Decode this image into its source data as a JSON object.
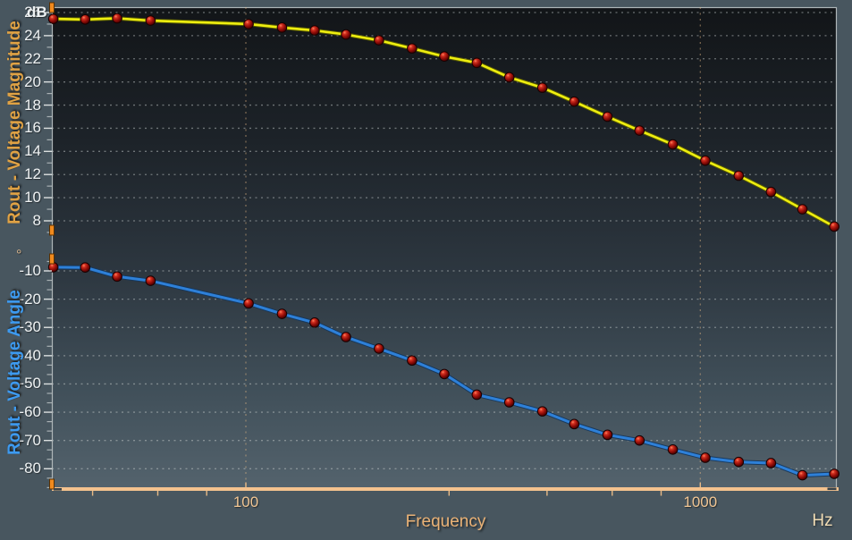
{
  "labels": {
    "mag_unit": "dB",
    "ang_unit": "°",
    "mag_axis_title": "Rout - Voltage Magnitude",
    "ang_axis_title": "Rout - Voltage Angle",
    "x_axis_title": "Frequency",
    "x_unit": "Hz"
  },
  "colors": {
    "page_background": "#48565f",
    "plot_gradient_top": "#14171a",
    "plot_gradient_bottom": "#54636d",
    "plot_border": "#aeb6b8",
    "x_axis_line": "#f4c28e",
    "tan_text": "#f0c593",
    "white_text": "#eff2f3",
    "magnitude_curve": "#eeee10",
    "angle_curve": "#2e80d8",
    "marker_fill": "#8b0000",
    "grid_gray": "#c3c9ca",
    "grid_tan": "#e8ba86",
    "axis_handle": "#f08a1e",
    "mag_title_color": "#e0a244",
    "ang_title_color": "#3d9af0"
  },
  "chart_data": {
    "type": "line",
    "title": "",
    "xlabel": "Frequency",
    "x_unit": "Hz",
    "x_scale": "log",
    "grid": true,
    "x_range": [
      37.5,
      1980
    ],
    "x_ticks_labeled": [
      100,
      1000
    ],
    "x_ticks_minor": [
      46,
      64,
      82,
      280,
      460,
      640,
      820
    ],
    "x": [
      37.7,
      44.3,
      52.1,
      61.7,
      101.4,
      120.1,
      141.7,
      166.1,
      196.3,
      232.1,
      273.4,
      322.3,
      380.0,
      449.3,
      528.0,
      624.9,
      734.9,
      870.1,
      1025.8,
      1215.0,
      1430.9,
      1678.0,
      1972.0
    ],
    "series": [
      {
        "name": "Rout - Voltage Magnitude",
        "unit": "dB",
        "axis_ticks": [
          26,
          24,
          22,
          20,
          18,
          16,
          14,
          12,
          10,
          8
        ],
        "axis_range": [
          6.8,
          26.5
        ],
        "color": "#eeee10",
        "marker": "dark-red-circle",
        "values": [
          25.45,
          25.4,
          25.5,
          25.3,
          25.0,
          24.7,
          24.45,
          24.1,
          23.6,
          22.9,
          22.2,
          21.65,
          20.4,
          19.5,
          18.3,
          17.0,
          15.8,
          14.6,
          13.2,
          11.9,
          10.5,
          9.0,
          7.5
        ]
      },
      {
        "name": "Rout - Voltage Angle",
        "unit": "deg",
        "axis_ticks": [
          -10,
          -20,
          -30,
          -40,
          -50,
          -60,
          -70,
          -80
        ],
        "axis_range": [
          -4.0,
          -87.2
        ],
        "color": "#2e80d8",
        "marker": "dark-red-circle",
        "values": [
          -8.7,
          -8.8,
          -12.0,
          -13.5,
          -21.5,
          -25.2,
          -28.3,
          -33.4,
          -37.5,
          -41.7,
          -46.5,
          -53.8,
          -56.5,
          -59.7,
          -64.2,
          -68.0,
          -70.0,
          -73.2,
          -76.1,
          -77.6,
          -78.0,
          -82.3,
          -81.8
        ]
      }
    ],
    "legend_position": "rotated-left-axis-titles"
  }
}
